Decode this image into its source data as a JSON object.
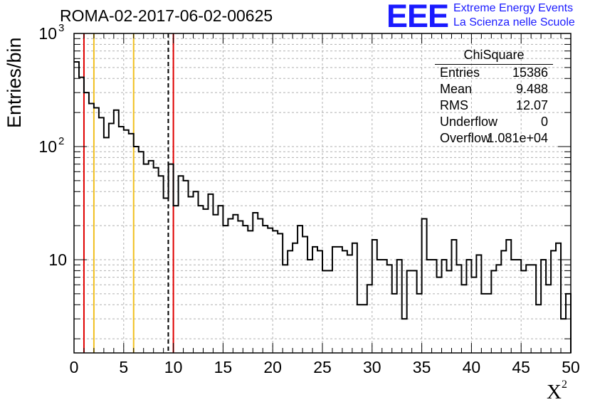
{
  "title": "ROMA-02-2017-06-02-00625",
  "logo": {
    "mark": "EEE",
    "line1": "Extreme Energy Events",
    "line2": "La Scienza nelle Scuole"
  },
  "stats": {
    "name": "ChiSquare",
    "rows": [
      {
        "key": "Entries",
        "value": "15386"
      },
      {
        "key": "Mean",
        "value": "9.488"
      },
      {
        "key": "RMS",
        "value": "12.07"
      },
      {
        "key": "Underflow",
        "value": "0"
      },
      {
        "key": "Overflow",
        "value": "1.081e+04"
      }
    ]
  },
  "colors": {
    "hist": "#000000",
    "red_line": "#e00000",
    "yellow_line": "#f0c020",
    "grid": "#b0b0b0",
    "logo": "#1a1aff"
  },
  "chart_data": {
    "type": "histogram",
    "xlabel": "X",
    "xlabel_sup": "2",
    "ylabel": "Entries/bin",
    "xlim": [
      0,
      50
    ],
    "ylim": [
      1.5,
      1000
    ],
    "log_y": true,
    "grid": true,
    "bin_width": 0.5,
    "x_ticks": [
      "0",
      "5",
      "10",
      "15",
      "20",
      "25",
      "30",
      "35",
      "40",
      "45",
      "50"
    ],
    "y_ticks": [
      {
        "value": 10,
        "label": "10"
      },
      {
        "value": 100,
        "label": "10",
        "sup": "2"
      },
      {
        "value": 1000,
        "label": "10",
        "sup": "3"
      }
    ],
    "counts": [
      560,
      410,
      300,
      240,
      220,
      180,
      120,
      160,
      210,
      150,
      140,
      130,
      100,
      90,
      70,
      75,
      65,
      55,
      35,
      70,
      30,
      55,
      50,
      36,
      40,
      30,
      28,
      38,
      25,
      30,
      20,
      23,
      25,
      22,
      20,
      18,
      26,
      23,
      20,
      19,
      18,
      17,
      9,
      12,
      14,
      20,
      16,
      10,
      13,
      12,
      8,
      8,
      13,
      13,
      12,
      11,
      14,
      4,
      4,
      6,
      15,
      10,
      10,
      9,
      5,
      10,
      3,
      8,
      8,
      5,
      23,
      10,
      10,
      7,
      10,
      8,
      15,
      9,
      6,
      10,
      7,
      11,
      5,
      5,
      8,
      9,
      12,
      15,
      10,
      10,
      8,
      9,
      9,
      4,
      10,
      6,
      12,
      14,
      3,
      5
    ],
    "vertical_lines": [
      {
        "x": 1,
        "style": "solid",
        "color": "red"
      },
      {
        "x": 2,
        "style": "solid",
        "color": "yellow"
      },
      {
        "x": 6,
        "style": "solid",
        "color": "yellow"
      },
      {
        "x": 9.488,
        "style": "dashed",
        "color": "black"
      },
      {
        "x": 10,
        "style": "solid",
        "color": "red"
      }
    ]
  }
}
